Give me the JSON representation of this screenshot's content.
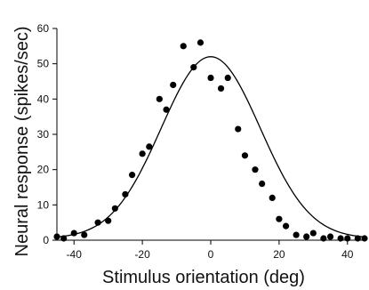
{
  "chart_data": {
    "type": "scatter",
    "xlabel": "Stimulus orientation (deg)",
    "ylabel": "Neural response (spikes/sec)",
    "xlim": [
      -45,
      45
    ],
    "ylim": [
      0,
      60
    ],
    "xticks": [
      -40,
      -20,
      0,
      20,
      40
    ],
    "yticks": [
      0,
      10,
      20,
      30,
      40,
      50,
      60
    ],
    "grid": false,
    "legend": "none",
    "series": [
      {
        "kind": "points",
        "x": [
          -45,
          -43,
          -40,
          -37,
          -33,
          -30,
          -28,
          -25,
          -23,
          -20,
          -18,
          -15,
          -13,
          -11,
          -8,
          -5,
          -3,
          0,
          3,
          5,
          8,
          10,
          13,
          15,
          18,
          20,
          22,
          25,
          28,
          30,
          33,
          35,
          38,
          40,
          43,
          45
        ],
        "y": [
          1,
          0.5,
          2,
          1.5,
          5,
          5.5,
          9,
          13,
          18.5,
          24.5,
          26.5,
          40,
          37,
          44,
          55,
          49,
          56,
          46,
          43,
          46,
          31.5,
          24,
          20,
          16,
          12,
          6,
          4,
          1.5,
          1,
          2,
          0.5,
          1,
          0.5,
          0.5,
          0.5,
          0.5
        ]
      },
      {
        "kind": "fit",
        "function": "gaussian",
        "amplitude": 51.5,
        "center": 0,
        "sigma": 14.5,
        "baseline": 0.5
      }
    ],
    "colors": {
      "points": "#000000",
      "line": "#000000",
      "axis": "#000000"
    }
  }
}
